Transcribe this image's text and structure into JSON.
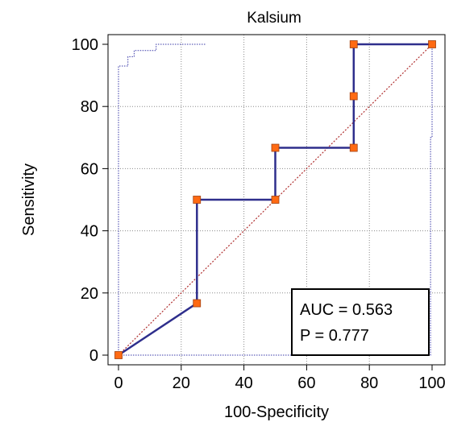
{
  "chart_data": {
    "type": "line",
    "title": "Kalsium",
    "xlabel": "100-Specificity",
    "ylabel": "Sensitivity",
    "xlim": [
      0,
      100
    ],
    "ylim": [
      0,
      100
    ],
    "x_ticks": [
      "0",
      "20",
      "40",
      "60",
      "80",
      "100"
    ],
    "y_ticks": [
      "0",
      "20",
      "40",
      "60",
      "80",
      "100"
    ],
    "grid": true,
    "series": [
      {
        "style": "roc-curve",
        "color": "#2e2e8c",
        "marker_color": "#ff6a13",
        "points": [
          {
            "x": 0,
            "y": 0
          },
          {
            "x": 25,
            "y": 16.7
          },
          {
            "x": 25,
            "y": 50
          },
          {
            "x": 50,
            "y": 50
          },
          {
            "x": 50,
            "y": 66.7
          },
          {
            "x": 75,
            "y": 66.7
          },
          {
            "x": 75,
            "y": 83.3
          },
          {
            "x": 75,
            "y": 100
          },
          {
            "x": 100,
            "y": 100
          }
        ]
      },
      {
        "style": "reference-line",
        "color": "#b03030",
        "points": [
          {
            "x": 0,
            "y": 0
          },
          {
            "x": 100,
            "y": 100
          }
        ]
      },
      {
        "style": "confidence-bound",
        "color": "#3a3aa8",
        "points": [
          {
            "x": 0,
            "y": 0
          },
          {
            "x": 0,
            "y": 93
          },
          {
            "x": 3,
            "y": 93
          },
          {
            "x": 3,
            "y": 96
          },
          {
            "x": 5,
            "y": 96
          },
          {
            "x": 5,
            "y": 98
          },
          {
            "x": 12,
            "y": 98
          },
          {
            "x": 12,
            "y": 100
          },
          {
            "x": 28,
            "y": 100
          }
        ]
      },
      {
        "style": "confidence-bound",
        "color": "#3a3aa8",
        "points": [
          {
            "x": 0,
            "y": 0
          },
          {
            "x": 99.5,
            "y": 0
          },
          {
            "x": 99.5,
            "y": 70
          },
          {
            "x": 100,
            "y": 70
          },
          {
            "x": 100,
            "y": 100
          }
        ]
      }
    ],
    "annotations": {
      "auc": "AUC = 0.563",
      "p": "P = 0.777"
    }
  }
}
